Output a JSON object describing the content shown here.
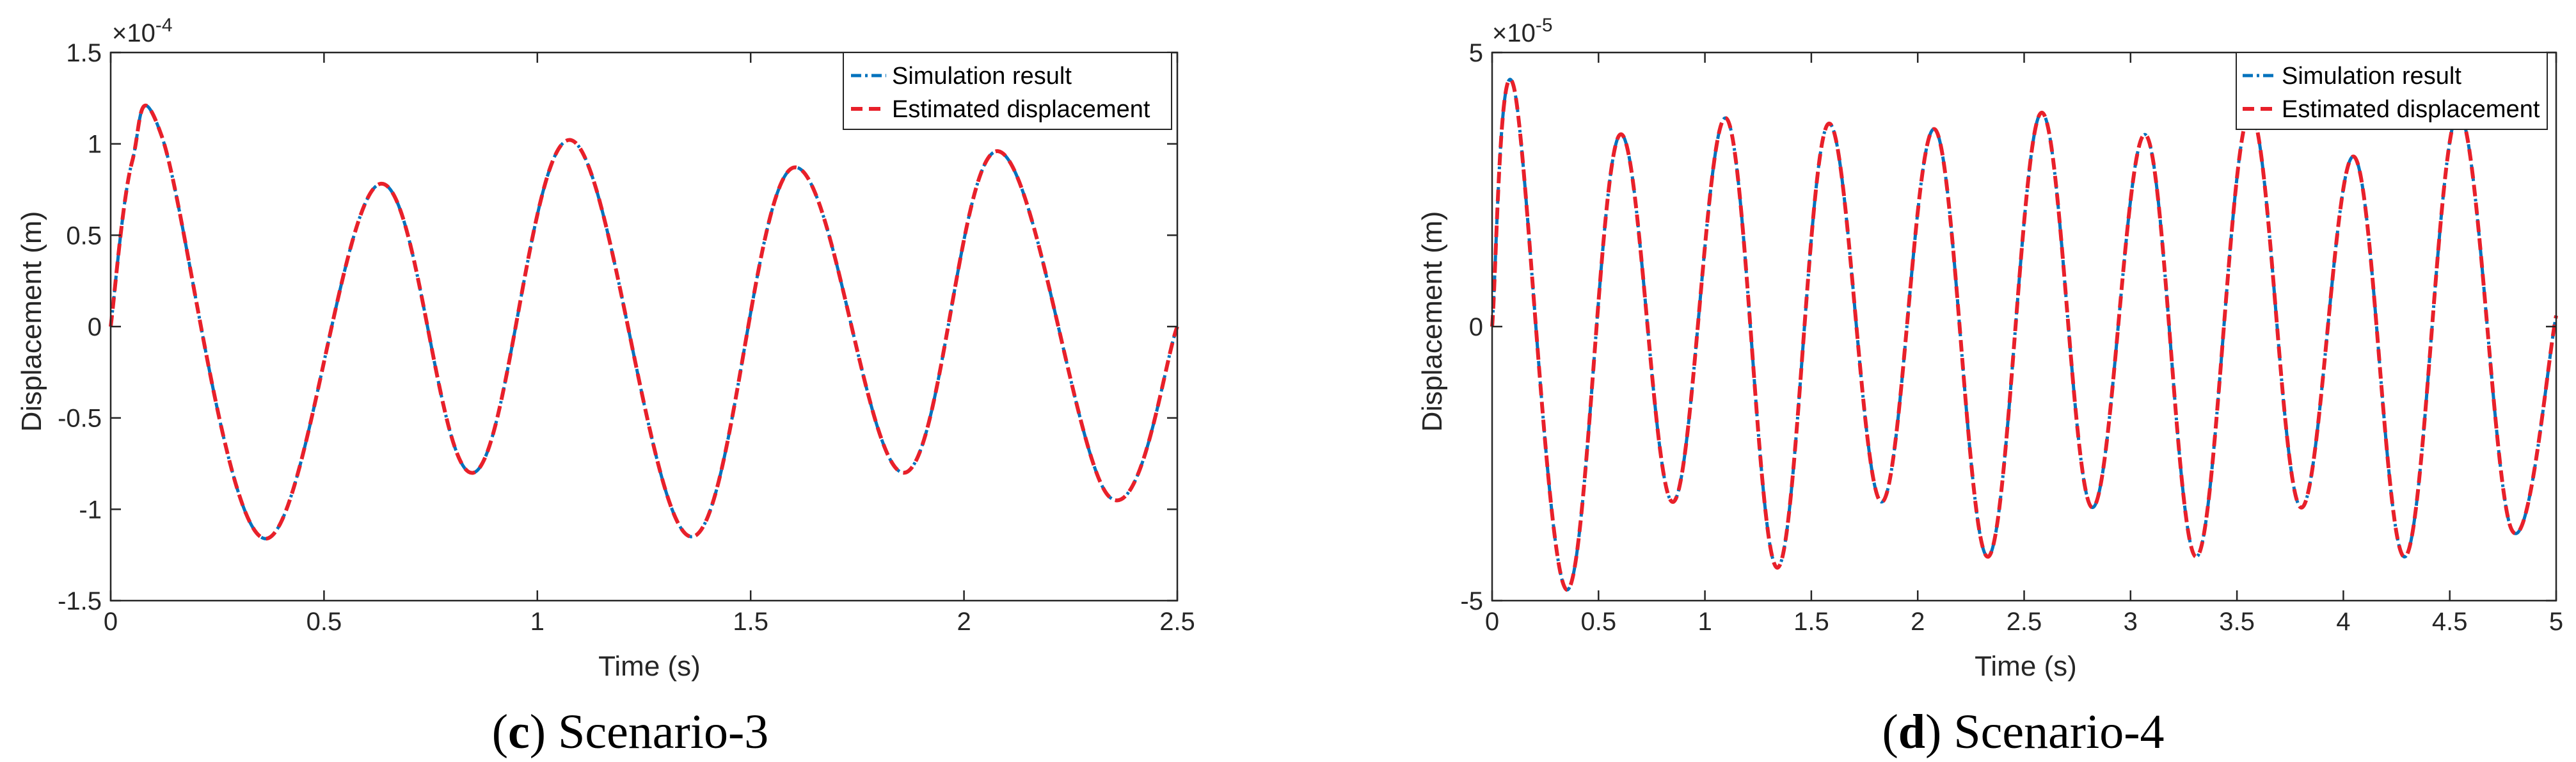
{
  "chart_data": [
    {
      "type": "line",
      "xlabel": "Time (s)",
      "ylabel": "Displacement (m)",
      "exponent_base": "×10",
      "exponent_power": "-4",
      "xlim": [
        0,
        2.5
      ],
      "ylim": [
        -1.5,
        1.5
      ],
      "xticks": [
        "0",
        "0.5",
        "1",
        "1.5",
        "2",
        "2.5"
      ],
      "yticks": [
        "-1.5",
        "-1",
        "-0.5",
        "0",
        "0.5",
        "1",
        "1.5"
      ],
      "grid": false,
      "legend_position": "top-right",
      "caption_letter": "c",
      "caption_text": "Scenario-3",
      "series": [
        {
          "name": "Simulation result",
          "color": "#0072BD",
          "style": "dash-dot",
          "x": [
            0,
            0.05,
            0.12,
            0.36,
            0.63,
            0.85,
            1.08,
            1.36,
            1.6,
            1.86,
            2.08,
            2.34,
            2.5
          ],
          "y": [
            0,
            0.9,
            1.04,
            -1.16,
            0.78,
            -0.8,
            1.02,
            -1.15,
            0.87,
            -0.8,
            0.96,
            -0.93,
            0
          ]
        },
        {
          "name": "Estimated displacement",
          "color": "#E8202A",
          "style": "dashed",
          "x": [
            0,
            0.05,
            0.12,
            0.36,
            0.63,
            0.85,
            1.08,
            1.36,
            1.6,
            1.86,
            2.08,
            2.34,
            2.5
          ],
          "y": [
            0,
            0.9,
            1.04,
            -1.16,
            0.78,
            -0.8,
            1.02,
            -1.15,
            0.87,
            -0.8,
            0.96,
            -0.93,
            0
          ]
        }
      ]
    },
    {
      "type": "line",
      "xlabel": "Time (s)",
      "ylabel": "Displacement (m)",
      "exponent_base": "×10",
      "exponent_power": "-5",
      "xlim": [
        0,
        5
      ],
      "ylim": [
        -5,
        5
      ],
      "xticks": [
        "0",
        "0.5",
        "1",
        "1.5",
        "2",
        "2.5",
        "3",
        "3.5",
        "4",
        "4.5",
        "5"
      ],
      "yticks": [
        "-5",
        "0",
        "5"
      ],
      "grid": false,
      "legend_position": "top-right",
      "caption_letter": "d",
      "caption_text": "Scenario-4",
      "series": [
        {
          "name": "Simulation result",
          "color": "#0072BD",
          "style": "dash-dot",
          "x": [
            0,
            0.1,
            0.35,
            0.6,
            0.85,
            1.1,
            1.34,
            1.58,
            1.83,
            2.08,
            2.33,
            2.58,
            2.82,
            3.07,
            3.31,
            3.56,
            3.8,
            4.05,
            4.29,
            4.54,
            4.79,
            5
          ],
          "y": [
            0,
            4.4,
            -4.8,
            3.5,
            -3.2,
            3.8,
            -4.4,
            3.7,
            -3.2,
            3.6,
            -4.2,
            3.9,
            -3.3,
            3.5,
            -4.2,
            3.9,
            -3.3,
            3.1,
            -4.2,
            3.9,
            -3.7,
            0.2
          ]
        },
        {
          "name": "Estimated displacement",
          "color": "#E8202A",
          "style": "dashed",
          "x": [
            0,
            0.1,
            0.35,
            0.6,
            0.85,
            1.1,
            1.34,
            1.58,
            1.83,
            2.08,
            2.33,
            2.58,
            2.82,
            3.07,
            3.31,
            3.56,
            3.8,
            4.05,
            4.29,
            4.54,
            4.79,
            5
          ],
          "y": [
            0,
            4.4,
            -4.8,
            3.5,
            -3.2,
            3.8,
            -4.4,
            3.7,
            -3.2,
            3.6,
            -4.2,
            3.9,
            -3.3,
            3.5,
            -4.2,
            3.9,
            -3.3,
            3.1,
            -4.2,
            3.9,
            -3.7,
            0.2
          ]
        }
      ]
    }
  ]
}
